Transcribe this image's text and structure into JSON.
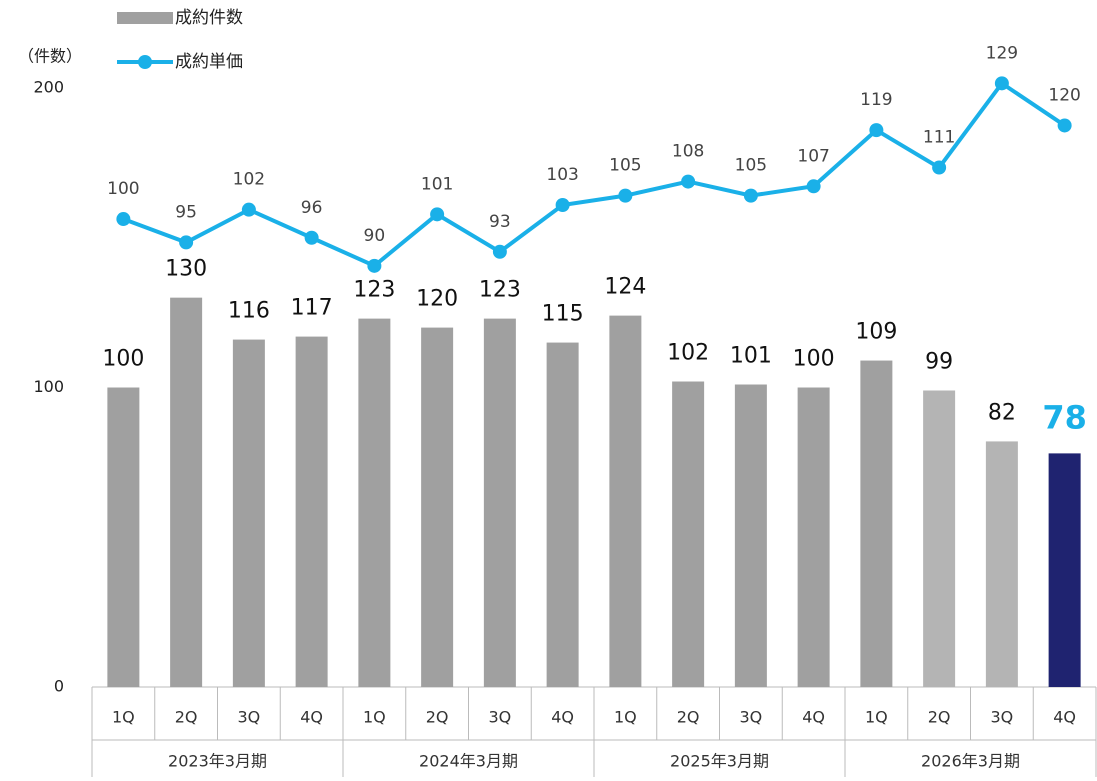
{
  "chart_data": {
    "type": "bar-line",
    "y_label": "（件数）",
    "categories": [
      "1Q",
      "2Q",
      "3Q",
      "4Q",
      "1Q",
      "2Q",
      "3Q",
      "4Q",
      "1Q",
      "2Q",
      "3Q",
      "4Q",
      "1Q",
      "2Q",
      "3Q",
      "4Q"
    ],
    "groups": [
      "2023年3月期",
      "2024年3月期",
      "2025年3月期",
      "2026年3月期"
    ],
    "ylim": [
      0,
      200
    ],
    "yticks": [
      0,
      100,
      200
    ],
    "y2lim": [
      0,
      128
    ],
    "series": [
      {
        "name": "成約件数",
        "type": "bar",
        "color": "#a0a0a0",
        "colors": [
          "#a0a0a0",
          "#a0a0a0",
          "#a0a0a0",
          "#a0a0a0",
          "#a0a0a0",
          "#a0a0a0",
          "#a0a0a0",
          "#a0a0a0",
          "#a0a0a0",
          "#a0a0a0",
          "#a0a0a0",
          "#a0a0a0",
          "#a0a0a0",
          "#b4b4b4",
          "#b4b4b4",
          "#1f2370"
        ],
        "values": [
          100,
          130,
          116,
          117,
          123,
          120,
          123,
          115,
          124,
          102,
          101,
          100,
          109,
          99,
          82,
          78
        ]
      },
      {
        "name": "成約単価",
        "type": "line",
        "axis": "y2",
        "color": "#1ab0e8",
        "values": [
          100,
          95,
          102,
          96,
          90,
          101,
          93,
          103,
          105,
          108,
          105,
          107,
          119,
          111,
          129,
          120
        ]
      }
    ]
  }
}
